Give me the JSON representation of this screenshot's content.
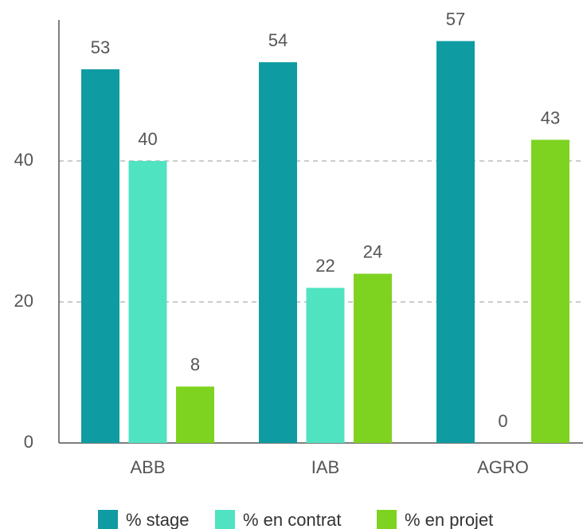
{
  "chart_data": {
    "type": "bar",
    "categories": [
      "ABB",
      "IAB",
      "AGRO"
    ],
    "series": [
      {
        "name": "% stage",
        "color": "#0e9ca2",
        "values": [
          53,
          54,
          57
        ]
      },
      {
        "name": "% en contrat",
        "color": "#50e3c2",
        "values": [
          40,
          22,
          0
        ]
      },
      {
        "name": "% en projet",
        "color": "#7ed321",
        "values": [
          8,
          24,
          43
        ]
      }
    ],
    "ylim": [
      0,
      60
    ],
    "yticks": [
      0,
      20,
      40
    ],
    "grid": true,
    "legend": "bottom"
  }
}
